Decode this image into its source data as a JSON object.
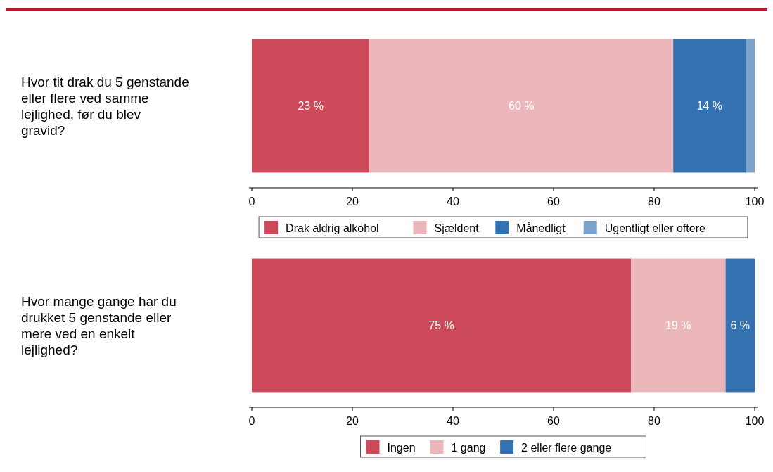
{
  "chart_data": [
    {
      "type": "bar",
      "orientation": "horizontal",
      "stacked": true,
      "categories": [
        "Hvor tit drak du 5 genstande eller flere ved samme lejlighed, før du blev gravid?"
      ],
      "series": [
        {
          "name": "Drak aldrig alkohol",
          "color": "#cc4a5a",
          "values": [
            23.4
          ],
          "value_labels": [
            "23 %"
          ]
        },
        {
          "name": "Sjældent",
          "color": "#ebb7bb",
          "values": [
            60.4
          ],
          "value_labels": [
            "60 %"
          ]
        },
        {
          "name": "Månedligt",
          "color": "#3371b0",
          "values": [
            14.4
          ],
          "value_labels": [
            "14 %"
          ]
        },
        {
          "name": "Ugentligt eller oftere",
          "color": "#7ba2c8",
          "values": [
            1.8
          ],
          "value_labels": [
            null
          ]
        }
      ],
      "xlim": [
        0,
        100
      ],
      "xticks": [
        0,
        20,
        40,
        60,
        80,
        100
      ],
      "legend": "bottom",
      "grid": false
    },
    {
      "type": "bar",
      "orientation": "horizontal",
      "stacked": true,
      "categories": [
        "Hvor mange gange har du drukket 5 genstande eller mere ved en enkelt lejlighed?"
      ],
      "series": [
        {
          "name": "Ingen",
          "color": "#cc4a5a",
          "values": [
            75.4
          ],
          "value_labels": [
            "75 %"
          ]
        },
        {
          "name": "1 gang",
          "color": "#ebb7bb",
          "values": [
            18.8
          ],
          "value_labels": [
            "19 %"
          ]
        },
        {
          "name": "2 eller flere gange",
          "color": "#3371b0",
          "values": [
            5.8
          ],
          "value_labels": [
            "6 %"
          ]
        }
      ],
      "xlim": [
        0,
        100
      ],
      "xticks": [
        0,
        20,
        40,
        60,
        80,
        100
      ],
      "legend": "bottom",
      "grid": false
    }
  ]
}
